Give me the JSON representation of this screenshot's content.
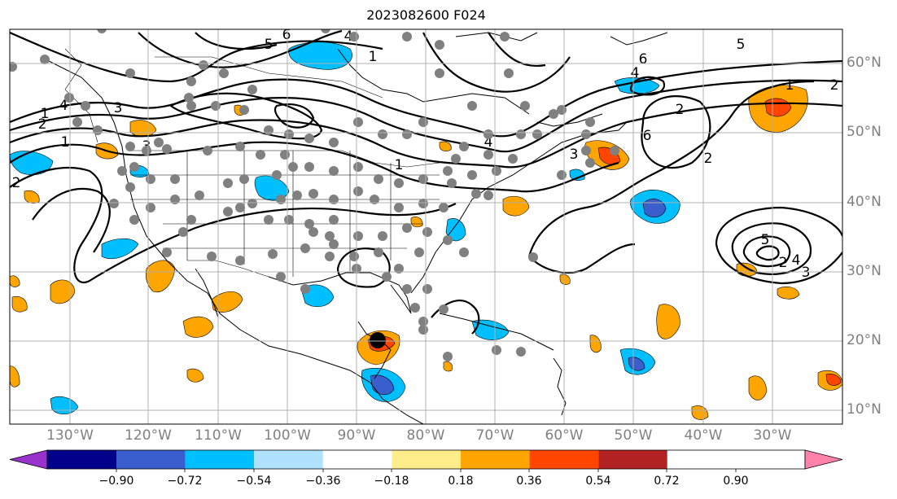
{
  "title": "2023082600 F024",
  "map": {
    "region": "North America / North Atlantic",
    "lon_range_deg": [
      -140,
      -22
    ],
    "lat_range_deg": [
      8,
      65
    ],
    "gridlines": true,
    "coastlines": true,
    "state_borders": true,
    "contour_color": "#000000",
    "station_marker_color": "#808080",
    "storm_center_marker_color": "#000000"
  },
  "lat_labels": [
    "60°N",
    "50°N",
    "40°N",
    "30°N",
    "20°N",
    "10°N"
  ],
  "lon_labels": [
    "130°W",
    "120°W",
    "110°W",
    "100°W",
    "90°W",
    "80°W",
    "70°W",
    "60°W",
    "50°W",
    "40°W",
    "30°W"
  ],
  "contour_labels": [
    "6",
    "5",
    "4",
    "1",
    "1",
    "4",
    "3",
    "2",
    "1",
    "2",
    "3",
    "4",
    "5",
    "6",
    "2",
    "6",
    "2",
    "4",
    "3",
    "1",
    "5",
    "2",
    "4",
    "3",
    "2",
    "1"
  ],
  "colorbar": {
    "ticks": [
      "−0.90",
      "−0.72",
      "−0.54",
      "−0.36",
      "−0.18",
      "0.18",
      "0.36",
      "0.54",
      "0.72",
      "0.90"
    ],
    "colors": [
      "#9932cc",
      "#00008b",
      "#3a5fcd",
      "#00bfff",
      "#b0e2ff",
      "#ffffff",
      "#ffec8b",
      "#ffa500",
      "#ff4500",
      "#b22222",
      "#ff82ab"
    ],
    "extend": "both"
  }
}
